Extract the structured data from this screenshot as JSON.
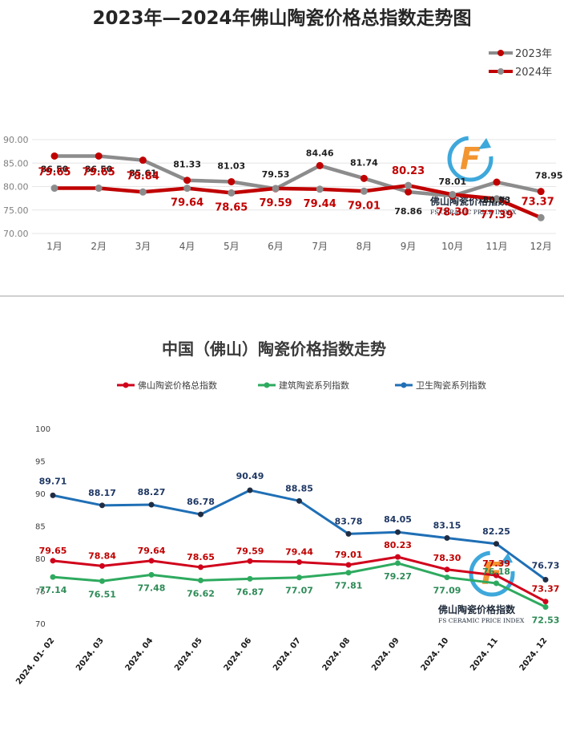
{
  "chart_data": [
    {
      "type": "line",
      "title": "2023年—2024年佛山陶瓷价格总指数走势图",
      "categories": [
        "1月",
        "2月",
        "3月",
        "4月",
        "5月",
        "6月",
        "7月",
        "8月",
        "9月",
        "10月",
        "11月",
        "12月"
      ],
      "ylim": [
        70,
        90
      ],
      "yticks": [
        "70.00",
        "75.00",
        "80.00",
        "85.00",
        "90.00"
      ],
      "grid": true,
      "legend": "top-right",
      "series": [
        {
          "name": "2023年",
          "color": "#8c8c8c",
          "marker": "#c00000",
          "label_color": "#1f1f1f",
          "values": [
            86.5,
            86.5,
            85.61,
            81.33,
            81.03,
            79.53,
            84.46,
            81.74,
            78.86,
            78.01,
            80.93,
            78.95
          ]
        },
        {
          "name": "2024年",
          "color": "#c00000",
          "marker": "#8c8c8c",
          "label_color": "#c00000",
          "values": [
            79.65,
            79.65,
            78.84,
            79.64,
            78.65,
            79.59,
            79.44,
            79.01,
            80.23,
            78.3,
            77.39,
            73.37
          ]
        }
      ],
      "labels": {
        "2023年": [
          "86.50",
          "86.50",
          "85.61",
          "81.33",
          "81.03",
          "79.53",
          "84.46",
          "81.74",
          "78.86",
          "78.01",
          "80.93",
          "78.95"
        ],
        "2024年": [
          "79.65",
          "79.65",
          "78.84",
          "79.64",
          "78.65",
          "79.59",
          "79.44",
          "79.01",
          "80.23",
          "78.30",
          "77.39",
          "73.37"
        ]
      },
      "watermark": {
        "cn": "佛山陶瓷价格指数",
        "en": "FS CERAMIC PRICE INDEX"
      }
    },
    {
      "type": "line",
      "title": "中国（佛山）陶瓷价格指数走势",
      "categories": [
        "2024. 01- 02",
        "2024. 03",
        "2024. 04",
        "2024. 05",
        "2024. 06",
        "2024. 07",
        "2024. 08",
        "2024. 09",
        "2024. 10",
        "2024. 11",
        "2024. 12"
      ],
      "ylim": [
        70,
        100
      ],
      "yticks": [
        "70",
        "75",
        "80",
        "85",
        "90",
        "95",
        "100"
      ],
      "grid": false,
      "legend": "top",
      "series": [
        {
          "name": "佛山陶瓷价格总指数",
          "color": "#d0021b",
          "label_color": "#c00000",
          "values": [
            79.65,
            78.84,
            79.64,
            78.65,
            79.59,
            79.44,
            79.01,
            80.23,
            78.3,
            77.39,
            73.37
          ]
        },
        {
          "name": "建筑陶瓷系列指数",
          "color": "#2eaa5f",
          "label_color": "#2e8b57",
          "values": [
            77.14,
            76.51,
            77.48,
            76.62,
            76.87,
            77.07,
            77.81,
            79.27,
            77.09,
            76.18,
            72.53
          ]
        },
        {
          "name": "卫生陶瓷系列指数",
          "color": "#1f6fb5",
          "label_color": "#1f3864",
          "values": [
            89.71,
            88.17,
            88.27,
            86.78,
            90.49,
            88.85,
            83.78,
            84.05,
            83.15,
            82.25,
            76.73
          ]
        }
      ],
      "labels": {
        "佛山陶瓷价格总指数": [
          "79.65",
          "78.84",
          "79.64",
          "78.65",
          "79.59",
          "79.44",
          "79.01",
          "80.23",
          "78.30",
          "77.39",
          "73.37"
        ],
        "建筑陶瓷系列指数": [
          "77.14",
          "76.51",
          "77.48",
          "76.62",
          "76.87",
          "77.07",
          "77.81",
          "79.27",
          "77.09",
          "76.18",
          "72.53"
        ],
        "卫生陶瓷系列指数": [
          "89.71",
          "88.17",
          "88.27",
          "86.78",
          "90.49",
          "88.85",
          "83.78",
          "84.05",
          "83.15",
          "82.25",
          "76.73"
        ]
      },
      "watermark": {
        "cn": "佛山陶瓷价格指数",
        "en": "FS CERAMIC PRICE INDEX"
      }
    }
  ]
}
